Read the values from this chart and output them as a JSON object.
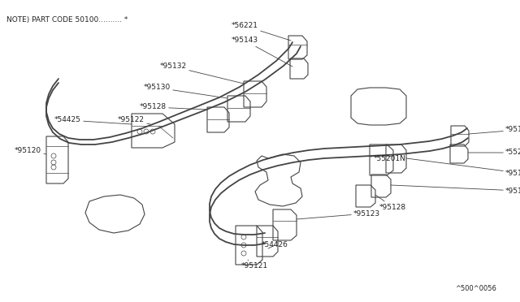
{
  "bg_color": "#ffffff",
  "line_color": "#444444",
  "text_color": "#222222",
  "title": "NOTE) PART CODE 50100.......... *",
  "footer": "^500^0056",
  "figsize": [
    6.4,
    3.72
  ],
  "dpi": 100
}
